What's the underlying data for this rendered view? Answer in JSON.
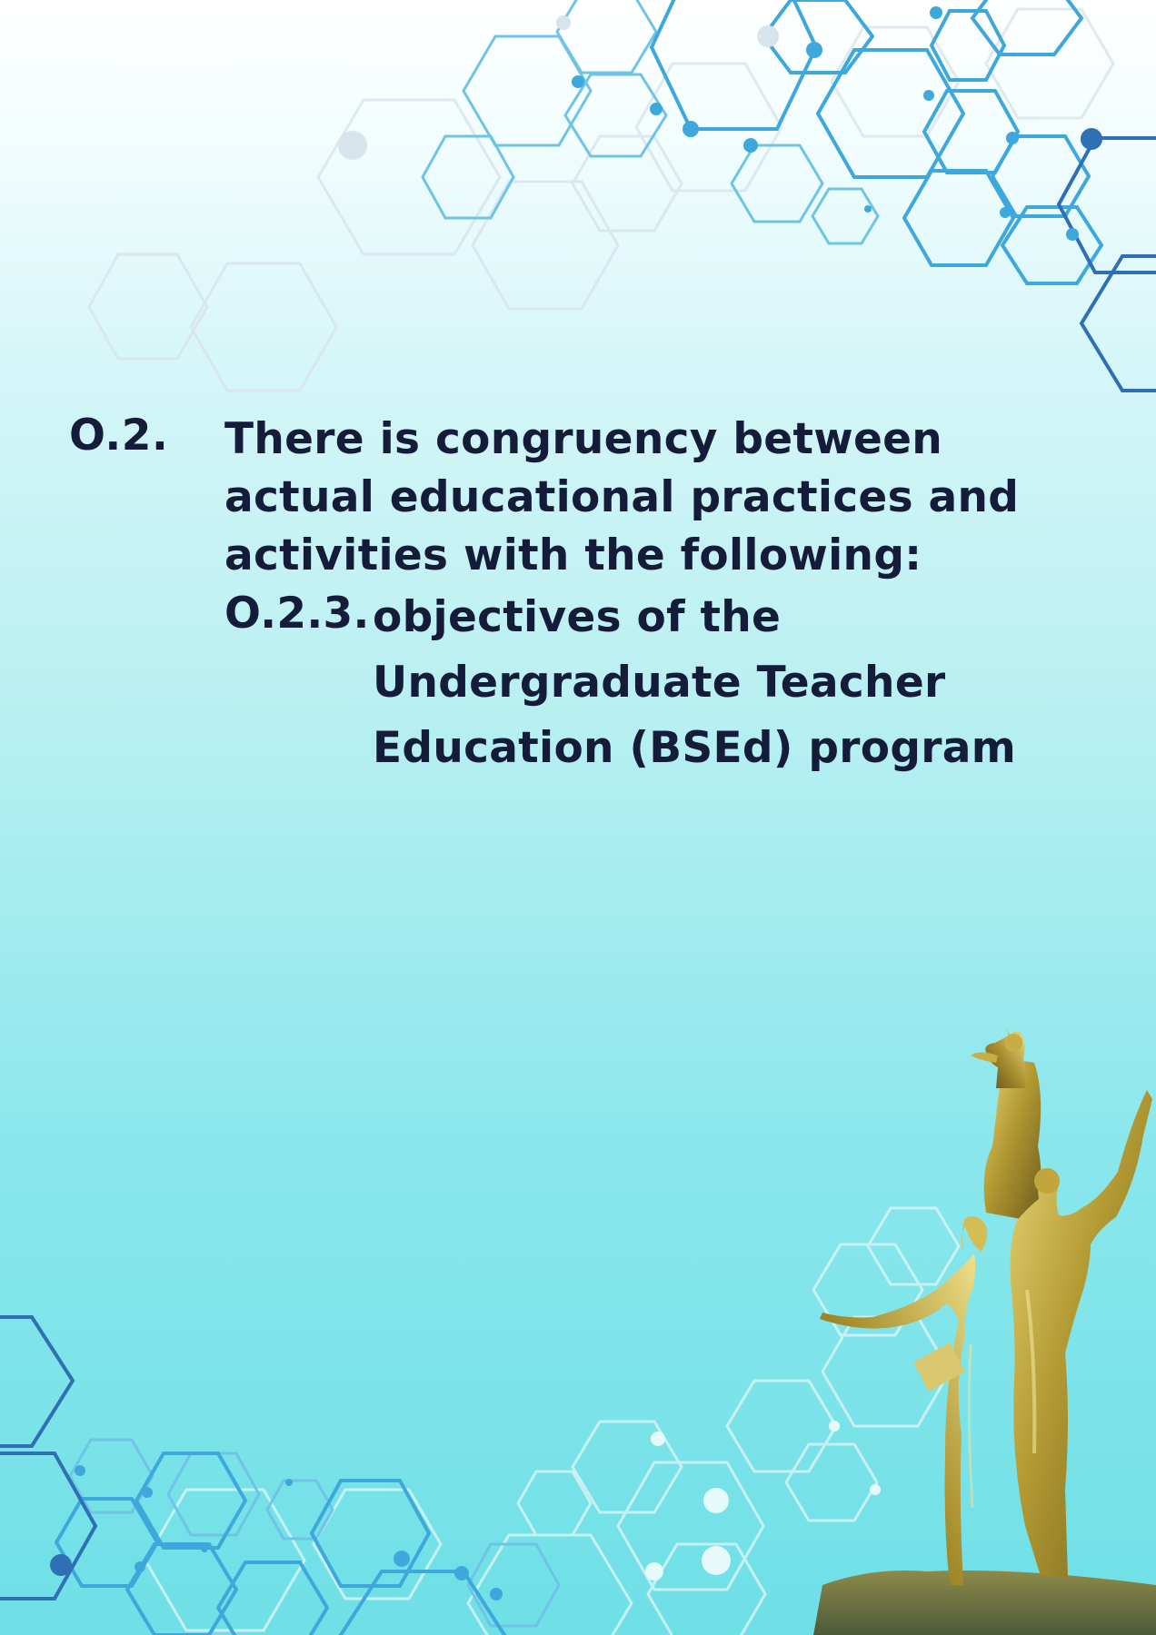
{
  "objective": {
    "number": "O.2.",
    "text": "There is congruency between actual educational practices and activities with the following:",
    "sub_item": {
      "number": "O.2.3.",
      "text": "objectives of the Undergraduate Teacher Education (BSEd) program"
    }
  },
  "colors": {
    "text": "#141c3a",
    "hex_accent": "#3b9fdc",
    "hex_dark": "#2f6fb4",
    "hex_light": "#d9e6ee",
    "background_bottom": "#6ee0e6",
    "statue_gold": "#b8a23a"
  },
  "decorations": {
    "background_pattern": "hexagon-network-pattern",
    "statue": "golden-statue-monument"
  }
}
